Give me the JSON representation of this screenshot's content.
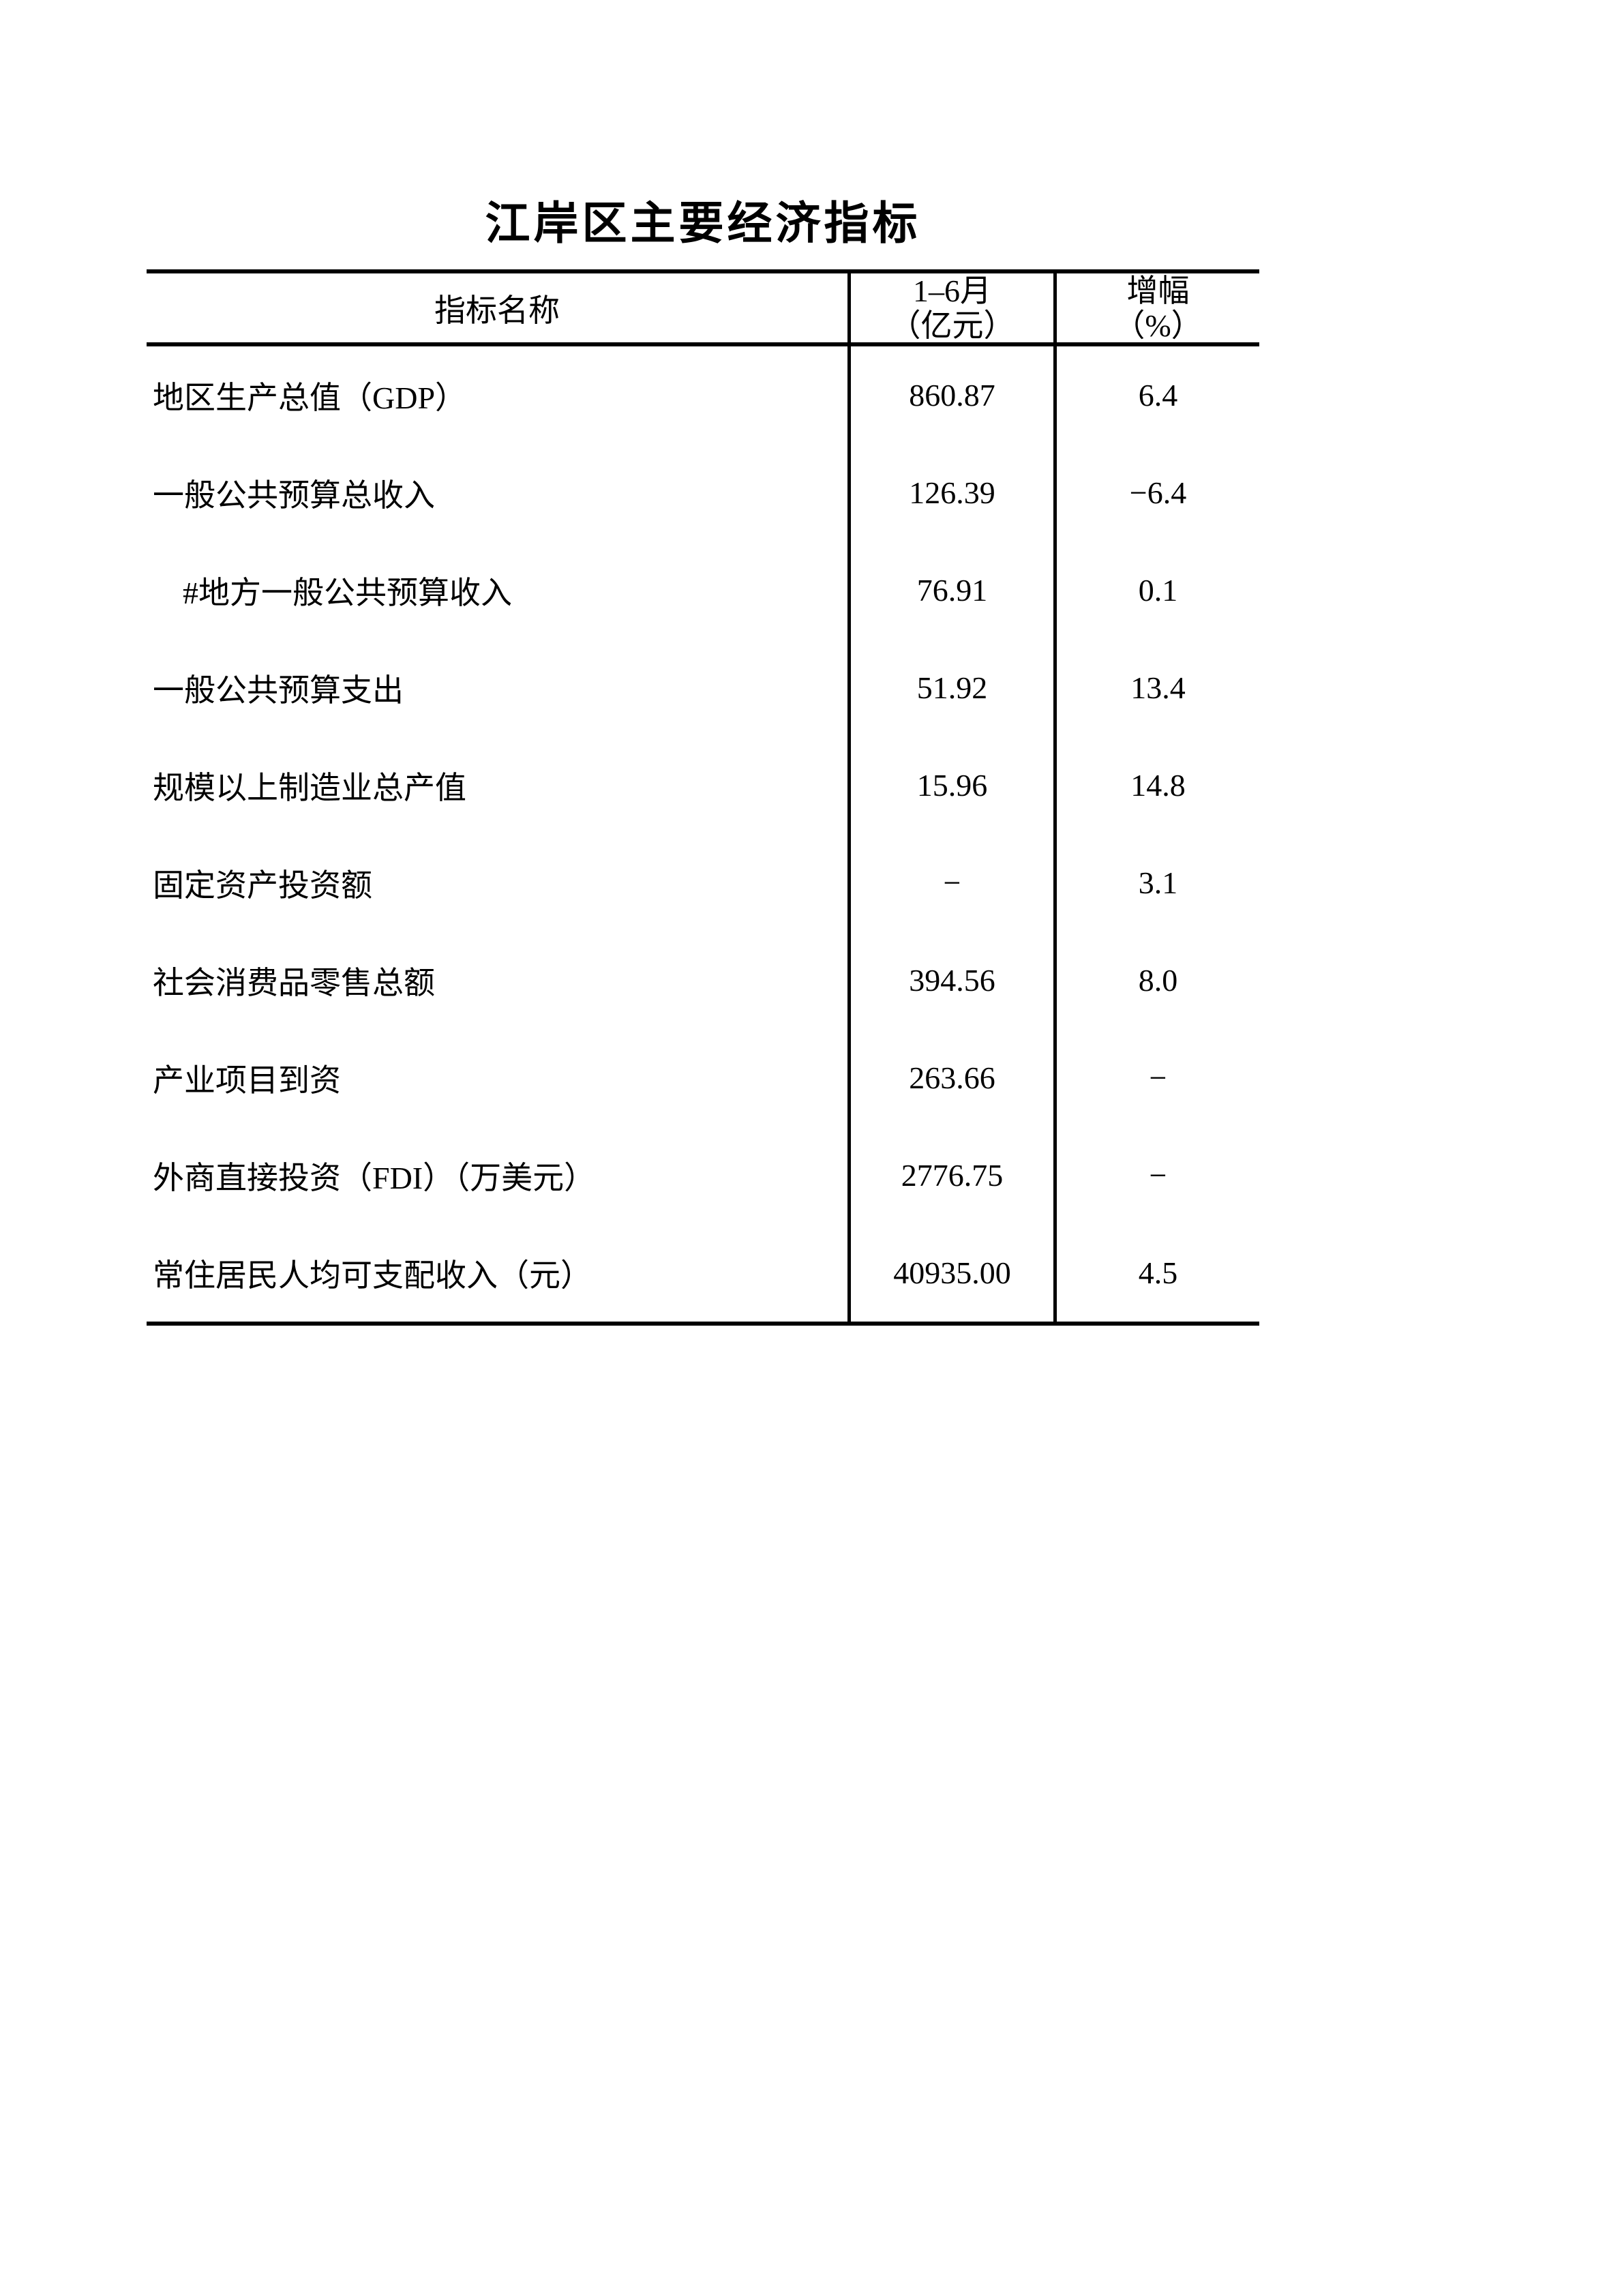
{
  "page": {
    "title": "江岸区主要经济指标"
  },
  "colors": {
    "text": "#000000",
    "background": "#ffffff",
    "table_border": "#000000"
  },
  "table": {
    "columns": [
      {
        "title": "指标名称"
      },
      {
        "line1": "1–6月",
        "line2": "（亿元）"
      },
      {
        "line1": "增幅",
        "line2": "（%）"
      }
    ],
    "rows": [
      {
        "name": "地区生产总值（GDP）",
        "value": "860.87",
        "growth": "6.4",
        "indent": false
      },
      {
        "name": "一般公共预算总收入",
        "value": "126.39",
        "growth": "−6.4",
        "indent": false
      },
      {
        "name": "#地方一般公共预算收入",
        "value": "76.91",
        "growth": "0.1",
        "indent": true
      },
      {
        "name": "一般公共预算支出",
        "value": "51.92",
        "growth": "13.4",
        "indent": false
      },
      {
        "name": "规模以上制造业总产值",
        "value": "15.96",
        "growth": "14.8",
        "indent": false
      },
      {
        "name": "固定资产投资额",
        "value": "−",
        "growth": "3.1",
        "indent": false
      },
      {
        "name": "社会消费品零售总额",
        "value": "394.56",
        "growth": "8.0",
        "indent": false
      },
      {
        "name": "产业项目到资",
        "value": "263.66",
        "growth": "−",
        "indent": false
      },
      {
        "name": "外商直接投资（FDI）（万美元）",
        "value": "2776.75",
        "growth": "−",
        "indent": false
      },
      {
        "name": "常住居民人均可支配收入（元）",
        "value": "40935.00",
        "growth": "4.5",
        "indent": false
      }
    ]
  }
}
